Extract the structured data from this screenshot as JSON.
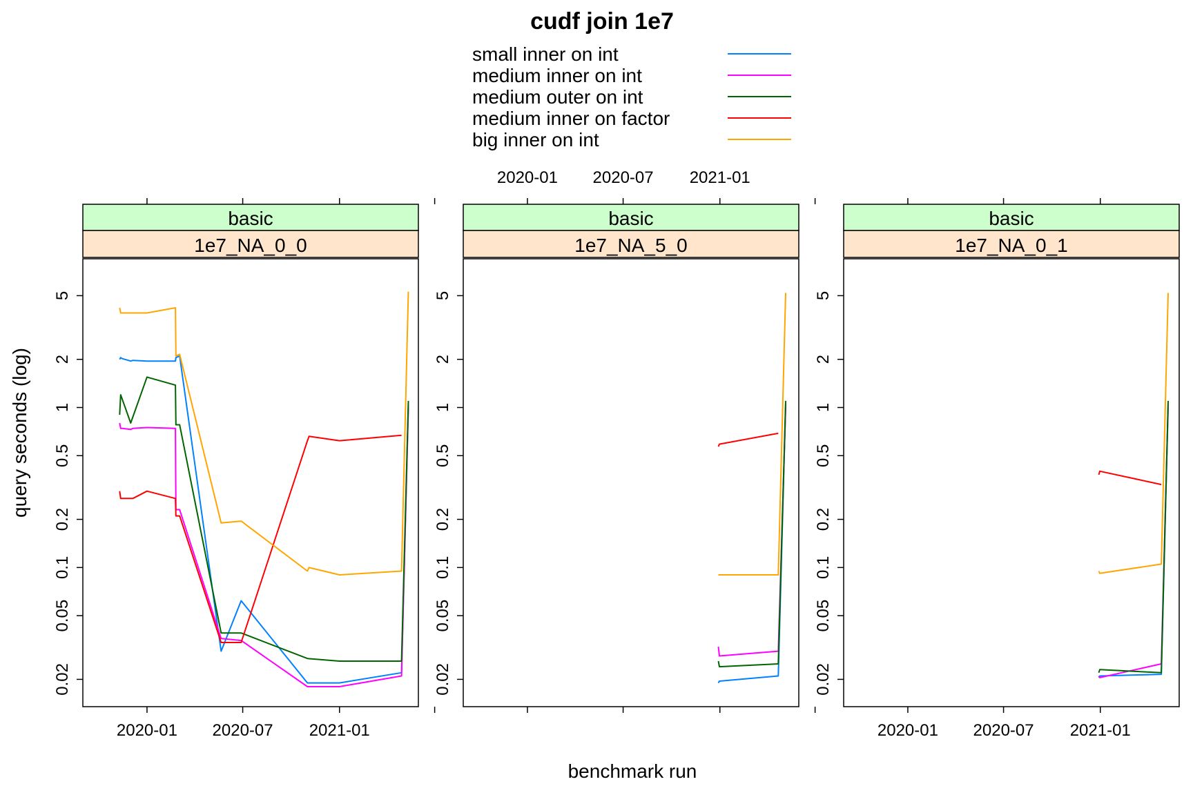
{
  "chart_data": {
    "type": "line",
    "title": "cudf join 1e7",
    "xlabel": "benchmark run",
    "ylabel": "query seconds (log)",
    "x_ticks": [
      "2020-01",
      "2020-07",
      "2021-01"
    ],
    "y_ticks": [
      "0.02",
      "0.05",
      "0.1",
      "0.2",
      "0.5",
      "1",
      "2",
      "5"
    ],
    "y_scale": "log",
    "legend_position": "top",
    "series_meta": [
      {
        "name": "small inner on int",
        "color": "#0080ff"
      },
      {
        "name": "medium inner on int",
        "color": "#ff00ff"
      },
      {
        "name": "medium outer on int",
        "color": "#006400"
      },
      {
        "name": "medium inner on factor",
        "color": "#ff0000"
      },
      {
        "name": "big inner on int",
        "color": "#ffa500"
      }
    ],
    "panels": [
      {
        "strip_top": "basic",
        "strip_bottom": "1e7_NA_0_0",
        "series": [
          {
            "name": "small inner on int",
            "x": [
              "2019-11-10",
              "2019-11-12",
              "2019-11-15",
              "2019-12-01",
              "2019-12-05",
              "2020-01-01",
              "2020-02-24",
              "2020-02-25",
              "2020-03-03",
              "2020-05-21",
              "2020-06-28",
              "2020-11-01",
              "2021-01-01",
              "2021-04-29",
              "2021-05-12"
            ],
            "y": [
              2.0,
              2.05,
              2.02,
              1.95,
              1.97,
              1.95,
              1.95,
              2.05,
              2.1,
              0.03,
              0.062,
              0.019,
              0.019,
              0.022,
              1.05
            ]
          },
          {
            "name": "medium inner on int",
            "x": [
              "2019-11-10",
              "2019-11-12",
              "2019-11-15",
              "2019-12-01",
              "2019-12-05",
              "2020-01-01",
              "2020-02-24",
              "2020-02-25",
              "2020-03-03",
              "2020-05-21",
              "2020-06-28",
              "2020-11-01",
              "2021-01-01",
              "2021-04-29",
              "2021-05-12"
            ],
            "y": [
              0.8,
              0.74,
              0.74,
              0.73,
              0.74,
              0.75,
              0.74,
              0.23,
              0.23,
              0.036,
              0.035,
              0.018,
              0.018,
              0.021,
              1.0
            ]
          },
          {
            "name": "medium outer on int",
            "x": [
              "2019-11-10",
              "2019-11-12",
              "2019-12-01",
              "2020-01-01",
              "2020-02-24",
              "2020-02-25",
              "2020-03-03",
              "2020-05-21",
              "2020-06-28",
              "2020-11-01",
              "2021-01-01",
              "2021-04-29",
              "2021-05-12"
            ],
            "y": [
              0.9,
              1.2,
              0.8,
              1.55,
              1.38,
              0.78,
              0.78,
              0.039,
              0.039,
              0.027,
              0.026,
              0.026,
              1.1
            ]
          },
          {
            "name": "medium inner on factor",
            "x": [
              "2019-11-10",
              "2019-11-12",
              "2019-11-15",
              "2019-12-01",
              "2019-12-05",
              "2020-01-01",
              "2020-02-24",
              "2020-02-25",
              "2020-03-03",
              "2020-05-21",
              "2020-06-28",
              "2020-11-01",
              "2020-11-04",
              "2021-01-01",
              "2021-04-29"
            ],
            "y": [
              0.3,
              0.27,
              0.27,
              0.27,
              0.27,
              0.3,
              0.27,
              0.21,
              0.21,
              0.034,
              0.034,
              0.62,
              0.66,
              0.62,
              0.67
            ]
          },
          {
            "name": "big inner on int",
            "x": [
              "2019-11-10",
              "2019-11-12",
              "2019-12-01",
              "2020-01-01",
              "2020-02-24",
              "2020-02-25",
              "2020-03-03",
              "2020-05-21",
              "2020-06-28",
              "2020-11-01",
              "2020-11-04",
              "2021-01-01",
              "2021-04-29",
              "2021-05-12"
            ],
            "y": [
              4.2,
              3.9,
              3.9,
              3.9,
              4.2,
              2.1,
              2.15,
              0.19,
              0.195,
              0.095,
              0.1,
              0.09,
              0.095,
              5.3
            ]
          }
        ]
      },
      {
        "strip_top": "basic",
        "strip_bottom": "1e7_NA_5_0",
        "series": [
          {
            "name": "small inner on int",
            "x": [
              "2020-12-29",
              "2020-12-31",
              "2021-04-22",
              "2021-05-06"
            ],
            "y": [
              0.019,
              0.0195,
              0.021,
              1.05
            ]
          },
          {
            "name": "medium inner on int",
            "x": [
              "2020-12-29",
              "2020-12-31",
              "2021-04-22",
              "2021-05-06"
            ],
            "y": [
              0.032,
              0.028,
              0.03,
              1.0
            ]
          },
          {
            "name": "medium outer on int",
            "x": [
              "2020-12-29",
              "2020-12-31",
              "2021-04-22",
              "2021-05-06"
            ],
            "y": [
              0.026,
              0.024,
              0.025,
              1.1
            ]
          },
          {
            "name": "medium inner on factor",
            "x": [
              "2020-12-29",
              "2020-12-31",
              "2021-04-22"
            ],
            "y": [
              0.57,
              0.59,
              0.69
            ]
          },
          {
            "name": "big inner on int",
            "x": [
              "2020-12-29",
              "2021-04-22",
              "2021-05-06"
            ],
            "y": [
              0.09,
              0.09,
              5.2
            ]
          }
        ]
      },
      {
        "strip_top": "basic",
        "strip_bottom": "1e7_NA_0_1",
        "series": [
          {
            "name": "small inner on int",
            "x": [
              "2020-12-29",
              "2020-12-31",
              "2021-04-27",
              "2021-05-10"
            ],
            "y": [
              0.0205,
              0.021,
              0.0215,
              1.0
            ]
          },
          {
            "name": "medium inner on int",
            "x": [
              "2020-12-29",
              "2020-12-31",
              "2021-04-27",
              "2021-05-10"
            ],
            "y": [
              0.021,
              0.0205,
              0.025,
              1.05
            ]
          },
          {
            "name": "medium outer on int",
            "x": [
              "2020-12-29",
              "2020-12-31",
              "2021-04-27",
              "2021-05-10"
            ],
            "y": [
              0.022,
              0.023,
              0.022,
              1.1
            ]
          },
          {
            "name": "medium inner on factor",
            "x": [
              "2020-12-29",
              "2020-12-31",
              "2021-04-27"
            ],
            "y": [
              0.38,
              0.4,
              0.33
            ]
          },
          {
            "name": "big inner on int",
            "x": [
              "2020-12-29",
              "2020-12-31",
              "2021-04-27",
              "2021-05-10"
            ],
            "y": [
              0.095,
              0.092,
              0.105,
              5.2
            ]
          }
        ]
      }
    ]
  }
}
